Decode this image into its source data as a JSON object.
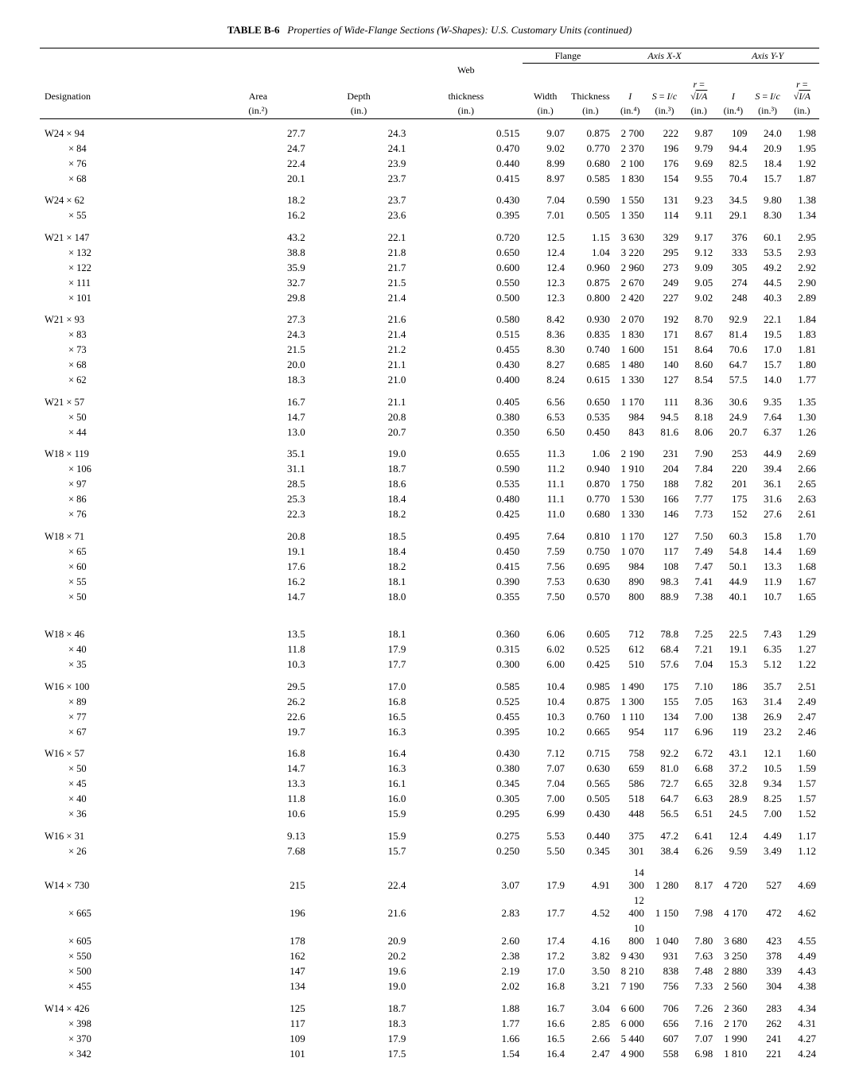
{
  "title_label": "TABLE B-6",
  "title_caption": "Properties of Wide-Flange Sections (W-Shapes): U.S. Customary Units (continued)",
  "group_headers": {
    "flange": "Flange",
    "axis_xx": "Axis X-X",
    "axis_yy": "Axis Y-Y"
  },
  "columns": {
    "designation": {
      "label": "Designation",
      "unit": ""
    },
    "area": {
      "label": "Area",
      "unit": "(in.²)"
    },
    "depth": {
      "label": "Depth",
      "unit": "(in.)"
    },
    "web": {
      "label": "Web thickness",
      "unit": "(in.)"
    },
    "fw": {
      "label": "Width",
      "unit": "(in.)"
    },
    "ft": {
      "label": "Thickness",
      "unit": "(in.)"
    },
    "ix": {
      "label": "I",
      "unit": "(in.⁴)"
    },
    "sx": {
      "label": "S = I/c",
      "unit": "(in.³)"
    },
    "rx": {
      "label": "r = √(I/A)",
      "unit": "(in.)"
    },
    "iy": {
      "label": "I",
      "unit": "(in.⁴)"
    },
    "sy": {
      "label": "S = I/c",
      "unit": "(in.³)"
    },
    "ry": {
      "label": "r = √(I/A)",
      "unit": "(in.)"
    }
  },
  "groups": [
    {
      "rows": [
        [
          "W24 × 94",
          "27.7",
          "24.3",
          "0.515",
          "9.07",
          "0.875",
          "2 700",
          "222",
          "9.87",
          "109",
          "24.0",
          "1.98"
        ],
        [
          "× 84",
          "24.7",
          "24.1",
          "0.470",
          "9.02",
          "0.770",
          "2 370",
          "196",
          "9.79",
          "94.4",
          "20.9",
          "1.95"
        ],
        [
          "× 76",
          "22.4",
          "23.9",
          "0.440",
          "8.99",
          "0.680",
          "2 100",
          "176",
          "9.69",
          "82.5",
          "18.4",
          "1.92"
        ],
        [
          "× 68",
          "20.1",
          "23.7",
          "0.415",
          "8.97",
          "0.585",
          "1 830",
          "154",
          "9.55",
          "70.4",
          "15.7",
          "1.87"
        ]
      ]
    },
    {
      "rows": [
        [
          "W24 × 62",
          "18.2",
          "23.7",
          "0.430",
          "7.04",
          "0.590",
          "1 550",
          "131",
          "9.23",
          "34.5",
          "9.80",
          "1.38"
        ],
        [
          "× 55",
          "16.2",
          "23.6",
          "0.395",
          "7.01",
          "0.505",
          "1 350",
          "114",
          "9.11",
          "29.1",
          "8.30",
          "1.34"
        ]
      ]
    },
    {
      "rows": [
        [
          "W21 × 147",
          "43.2",
          "22.1",
          "0.720",
          "12.5",
          "1.15",
          "3 630",
          "329",
          "9.17",
          "376",
          "60.1",
          "2.95"
        ],
        [
          "× 132",
          "38.8",
          "21.8",
          "0.650",
          "12.4",
          "1.04",
          "3 220",
          "295",
          "9.12",
          "333",
          "53.5",
          "2.93"
        ],
        [
          "× 122",
          "35.9",
          "21.7",
          "0.600",
          "12.4",
          "0.960",
          "2 960",
          "273",
          "9.09",
          "305",
          "49.2",
          "2.92"
        ],
        [
          "× 111",
          "32.7",
          "21.5",
          "0.550",
          "12.3",
          "0.875",
          "2 670",
          "249",
          "9.05",
          "274",
          "44.5",
          "2.90"
        ],
        [
          "× 101",
          "29.8",
          "21.4",
          "0.500",
          "12.3",
          "0.800",
          "2 420",
          "227",
          "9.02",
          "248",
          "40.3",
          "2.89"
        ]
      ]
    },
    {
      "rows": [
        [
          "W21 × 93",
          "27.3",
          "21.6",
          "0.580",
          "8.42",
          "0.930",
          "2 070",
          "192",
          "8.70",
          "92.9",
          "22.1",
          "1.84"
        ],
        [
          "× 83",
          "24.3",
          "21.4",
          "0.515",
          "8.36",
          "0.835",
          "1 830",
          "171",
          "8.67",
          "81.4",
          "19.5",
          "1.83"
        ],
        [
          "× 73",
          "21.5",
          "21.2",
          "0.455",
          "8.30",
          "0.740",
          "1 600",
          "151",
          "8.64",
          "70.6",
          "17.0",
          "1.81"
        ],
        [
          "× 68",
          "20.0",
          "21.1",
          "0.430",
          "8.27",
          "0.685",
          "1 480",
          "140",
          "8.60",
          "64.7",
          "15.7",
          "1.80"
        ],
        [
          "× 62",
          "18.3",
          "21.0",
          "0.400",
          "8.24",
          "0.615",
          "1 330",
          "127",
          "8.54",
          "57.5",
          "14.0",
          "1.77"
        ]
      ]
    },
    {
      "rows": [
        [
          "W21 × 57",
          "16.7",
          "21.1",
          "0.405",
          "6.56",
          "0.650",
          "1 170",
          "111",
          "8.36",
          "30.6",
          "9.35",
          "1.35"
        ],
        [
          "× 50",
          "14.7",
          "20.8",
          "0.380",
          "6.53",
          "0.535",
          "984",
          "94.5",
          "8.18",
          "24.9",
          "7.64",
          "1.30"
        ],
        [
          "× 44",
          "13.0",
          "20.7",
          "0.350",
          "6.50",
          "0.450",
          "843",
          "81.6",
          "8.06",
          "20.7",
          "6.37",
          "1.26"
        ]
      ]
    },
    {
      "rows": [
        [
          "W18 × 119",
          "35.1",
          "19.0",
          "0.655",
          "11.3",
          "1.06",
          "2 190",
          "231",
          "7.90",
          "253",
          "44.9",
          "2.69"
        ],
        [
          "× 106",
          "31.1",
          "18.7",
          "0.590",
          "11.2",
          "0.940",
          "1 910",
          "204",
          "7.84",
          "220",
          "39.4",
          "2.66"
        ],
        [
          "× 97",
          "28.5",
          "18.6",
          "0.535",
          "11.1",
          "0.870",
          "1 750",
          "188",
          "7.82",
          "201",
          "36.1",
          "2.65"
        ],
        [
          "× 86",
          "25.3",
          "18.4",
          "0.480",
          "11.1",
          "0.770",
          "1 530",
          "166",
          "7.77",
          "175",
          "31.6",
          "2.63"
        ],
        [
          "× 76",
          "22.3",
          "18.2",
          "0.425",
          "11.0",
          "0.680",
          "1 330",
          "146",
          "7.73",
          "152",
          "27.6",
          "2.61"
        ]
      ]
    },
    {
      "rows": [
        [
          "W18 × 71",
          "20.8",
          "18.5",
          "0.495",
          "7.64",
          "0.810",
          "1 170",
          "127",
          "7.50",
          "60.3",
          "15.8",
          "1.70"
        ],
        [
          "× 65",
          "19.1",
          "18.4",
          "0.450",
          "7.59",
          "0.750",
          "1 070",
          "117",
          "7.49",
          "54.8",
          "14.4",
          "1.69"
        ],
        [
          "× 60",
          "17.6",
          "18.2",
          "0.415",
          "7.56",
          "0.695",
          "984",
          "108",
          "7.47",
          "50.1",
          "13.3",
          "1.68"
        ],
        [
          "× 55",
          "16.2",
          "18.1",
          "0.390",
          "7.53",
          "0.630",
          "890",
          "98.3",
          "7.41",
          "44.9",
          "11.9",
          "1.67"
        ],
        [
          "× 50",
          "14.7",
          "18.0",
          "0.355",
          "7.50",
          "0.570",
          "800",
          "88.9",
          "7.38",
          "40.1",
          "10.7",
          "1.65"
        ]
      ]
    },
    {
      "big_gap": true,
      "rows": [
        [
          "W18 × 46",
          "13.5",
          "18.1",
          "0.360",
          "6.06",
          "0.605",
          "712",
          "78.8",
          "7.25",
          "22.5",
          "7.43",
          "1.29"
        ],
        [
          "× 40",
          "11.8",
          "17.9",
          "0.315",
          "6.02",
          "0.525",
          "612",
          "68.4",
          "7.21",
          "19.1",
          "6.35",
          "1.27"
        ],
        [
          "× 35",
          "10.3",
          "17.7",
          "0.300",
          "6.00",
          "0.425",
          "510",
          "57.6",
          "7.04",
          "15.3",
          "5.12",
          "1.22"
        ]
      ]
    },
    {
      "rows": [
        [
          "W16 × 100",
          "29.5",
          "17.0",
          "0.585",
          "10.4",
          "0.985",
          "1 490",
          "175",
          "7.10",
          "186",
          "35.7",
          "2.51"
        ],
        [
          "× 89",
          "26.2",
          "16.8",
          "0.525",
          "10.4",
          "0.875",
          "1 300",
          "155",
          "7.05",
          "163",
          "31.4",
          "2.49"
        ],
        [
          "× 77",
          "22.6",
          "16.5",
          "0.455",
          "10.3",
          "0.760",
          "1 110",
          "134",
          "7.00",
          "138",
          "26.9",
          "2.47"
        ],
        [
          "× 67",
          "19.7",
          "16.3",
          "0.395",
          "10.2",
          "0.665",
          "954",
          "117",
          "6.96",
          "119",
          "23.2",
          "2.46"
        ]
      ]
    },
    {
      "rows": [
        [
          "W16 × 57",
          "16.8",
          "16.4",
          "0.430",
          "7.12",
          "0.715",
          "758",
          "92.2",
          "6.72",
          "43.1",
          "12.1",
          "1.60"
        ],
        [
          "× 50",
          "14.7",
          "16.3",
          "0.380",
          "7.07",
          "0.630",
          "659",
          "81.0",
          "6.68",
          "37.2",
          "10.5",
          "1.59"
        ],
        [
          "× 45",
          "13.3",
          "16.1",
          "0.345",
          "7.04",
          "0.565",
          "586",
          "72.7",
          "6.65",
          "32.8",
          "9.34",
          "1.57"
        ],
        [
          "× 40",
          "11.8",
          "16.0",
          "0.305",
          "7.00",
          "0.505",
          "518",
          "64.7",
          "6.63",
          "28.9",
          "8.25",
          "1.57"
        ],
        [
          "× 36",
          "10.6",
          "15.9",
          "0.295",
          "6.99",
          "0.430",
          "448",
          "56.5",
          "6.51",
          "24.5",
          "7.00",
          "1.52"
        ]
      ]
    },
    {
      "rows": [
        [
          "W16 × 31",
          "9.13",
          "15.9",
          "0.275",
          "5.53",
          "0.440",
          "375",
          "47.2",
          "6.41",
          "12.4",
          "4.49",
          "1.17"
        ],
        [
          "× 26",
          "7.68",
          "15.7",
          "0.250",
          "5.50",
          "0.345",
          "301",
          "38.4",
          "6.26",
          "9.59",
          "3.49",
          "1.12"
        ]
      ]
    },
    {
      "rows": [
        [
          "W14 × 730",
          "215",
          "22.4",
          "3.07",
          "17.9",
          "4.91",
          "14 300",
          "1 280",
          "8.17",
          "4 720",
          "527",
          "4.69"
        ],
        [
          "× 665",
          "196",
          "21.6",
          "2.83",
          "17.7",
          "4.52",
          "12 400",
          "1 150",
          "7.98",
          "4 170",
          "472",
          "4.62"
        ],
        [
          "× 605",
          "178",
          "20.9",
          "2.60",
          "17.4",
          "4.16",
          "10 800",
          "1 040",
          "7.80",
          "3 680",
          "423",
          "4.55"
        ],
        [
          "× 550",
          "162",
          "20.2",
          "2.38",
          "17.2",
          "3.82",
          "9 430",
          "931",
          "7.63",
          "3 250",
          "378",
          "4.49"
        ],
        [
          "× 500",
          "147",
          "19.6",
          "2.19",
          "17.0",
          "3.50",
          "8 210",
          "838",
          "7.48",
          "2 880",
          "339",
          "4.43"
        ],
        [
          "× 455",
          "134",
          "19.0",
          "2.02",
          "16.8",
          "3.21",
          "7 190",
          "756",
          "7.33",
          "2 560",
          "304",
          "4.38"
        ]
      ]
    },
    {
      "rows": [
        [
          "W14 × 426",
          "125",
          "18.7",
          "1.88",
          "16.7",
          "3.04",
          "6 600",
          "706",
          "7.26",
          "2 360",
          "283",
          "4.34"
        ],
        [
          "× 398",
          "117",
          "18.3",
          "1.77",
          "16.6",
          "2.85",
          "6 000",
          "656",
          "7.16",
          "2 170",
          "262",
          "4.31"
        ],
        [
          "× 370",
          "109",
          "17.9",
          "1.66",
          "16.5",
          "2.66",
          "5 440",
          "607",
          "7.07",
          "1 990",
          "241",
          "4.27"
        ],
        [
          "× 342",
          "101",
          "17.5",
          "1.54",
          "16.4",
          "2.47",
          "4 900",
          "558",
          "6.98",
          "1 810",
          "221",
          "4.24"
        ]
      ]
    }
  ]
}
